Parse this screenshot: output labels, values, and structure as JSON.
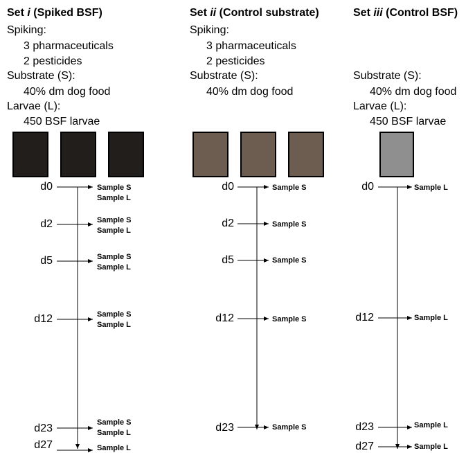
{
  "sets": [
    {
      "title_prefix": "Set ",
      "title_roman": "i",
      "title_suffix": " (Spiked BSF)",
      "spiking_label": "Spiking:",
      "spike_1": "3 pharmaceuticals",
      "spike_2": "2 pesticides",
      "substrate_label": "Substrate (S):",
      "substrate_value": "40% dm dog food",
      "larvae_label": "Larvae (L):",
      "larvae_value": "450 BSF larvae",
      "boxes": 3,
      "box_color": "#221e1b",
      "timepoints": [
        {
          "day": "d0",
          "samples": [
            "Sample S",
            "Sample L"
          ]
        },
        {
          "day": "d2",
          "samples": [
            "Sample S",
            "Sample L"
          ]
        },
        {
          "day": "d5",
          "samples": [
            "Sample S",
            "Sample L"
          ]
        },
        {
          "day": "d12",
          "samples": [
            "Sample S",
            "Sample L"
          ]
        },
        {
          "day": "d23",
          "samples": [
            "Sample S",
            "Sample L"
          ]
        },
        {
          "day": "d27",
          "samples": [
            "Sample L"
          ]
        }
      ]
    },
    {
      "title_prefix": "Set ",
      "title_roman": "ii",
      "title_suffix": " (Control substrate)",
      "spiking_label": "Spiking:",
      "spike_1": "3 pharmaceuticals",
      "spike_2": "2 pesticides",
      "substrate_label": "Substrate (S):",
      "substrate_value": "40% dm dog food",
      "boxes": 3,
      "box_color": "#6c5d50",
      "timepoints": [
        {
          "day": "d0",
          "samples": [
            "Sample S"
          ]
        },
        {
          "day": "d2",
          "samples": [
            "Sample S"
          ]
        },
        {
          "day": "d5",
          "samples": [
            "Sample S"
          ]
        },
        {
          "day": "d12",
          "samples": [
            "Sample S"
          ]
        },
        {
          "day": "d23",
          "samples": [
            "Sample S"
          ]
        }
      ]
    },
    {
      "title_prefix": "Set ",
      "title_roman": "iii",
      "title_suffix": " (Control BSF)",
      "substrate_label": "Substrate (S):",
      "substrate_value": "40% dm dog food",
      "larvae_label": "Larvae (L):",
      "larvae_value": "450 BSF larvae",
      "boxes": 1,
      "box_color": "#8f8f8f",
      "timepoints": [
        {
          "day": "d0",
          "samples": [
            "Sample L"
          ]
        },
        {
          "day": "d12",
          "samples": [
            "Sample L"
          ]
        },
        {
          "day": "d23",
          "samples": [
            "Sample L"
          ]
        },
        {
          "day": "d27",
          "samples": [
            "Sample L"
          ]
        }
      ]
    }
  ]
}
